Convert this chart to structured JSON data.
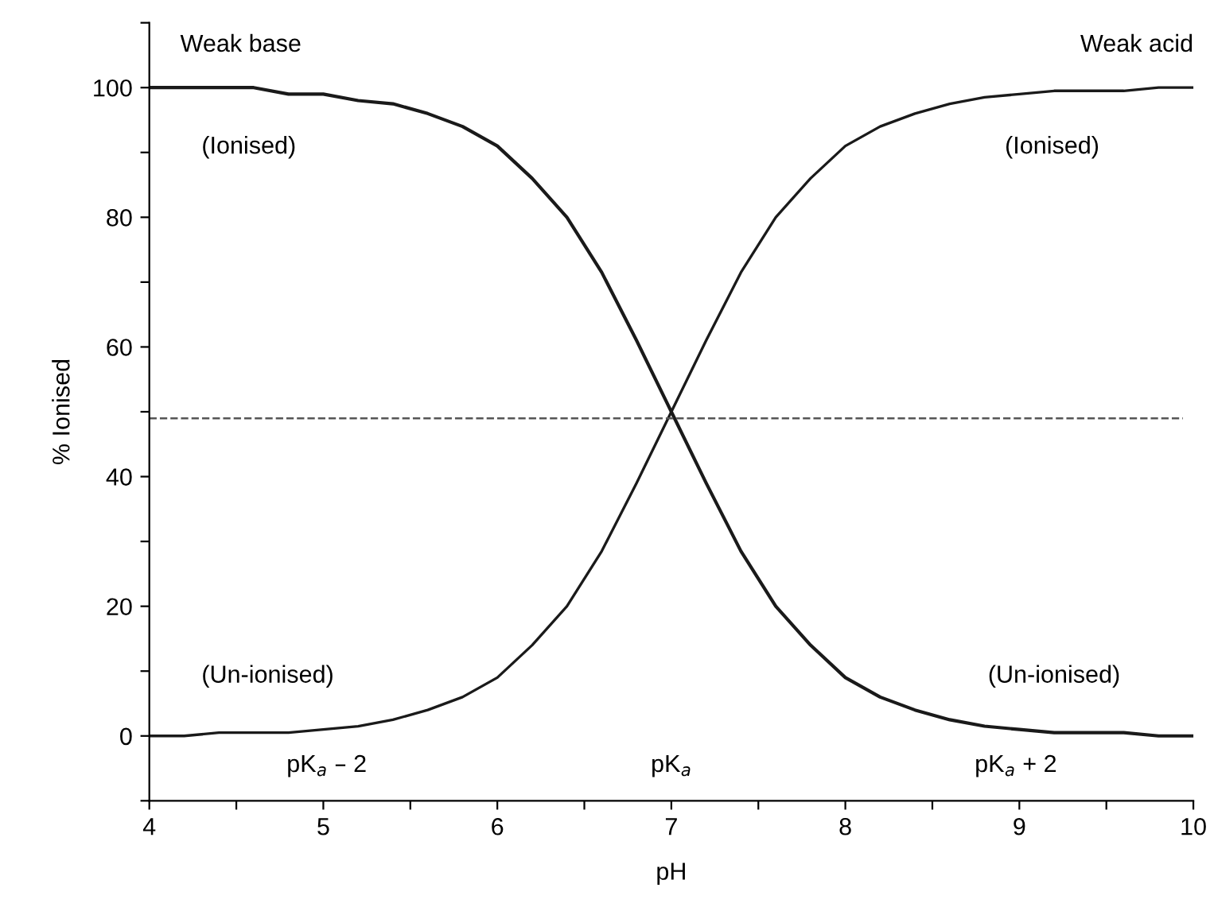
{
  "chart_data": {
    "type": "line",
    "xlabel": "pH",
    "ylabel": "% Ionised",
    "x": [
      4,
      4.2,
      4.4,
      4.6,
      4.8,
      5,
      5.2,
      5.4,
      5.6,
      5.8,
      6,
      6.2,
      6.4,
      6.6,
      6.8,
      7,
      7.2,
      7.4,
      7.6,
      7.8,
      8,
      8.2,
      8.4,
      8.6,
      8.8,
      9,
      9.2,
      9.4,
      9.6,
      9.8,
      10
    ],
    "series": [
      {
        "name": "Weak base",
        "color": "#1a1a1a",
        "values": [
          100,
          100,
          100,
          100,
          99,
          99,
          98,
          97.5,
          96,
          94,
          91,
          86,
          80,
          71.5,
          61,
          50,
          39,
          28.5,
          20,
          14,
          9,
          6,
          4,
          2.5,
          1.5,
          1,
          0.5,
          0.5,
          0.5,
          0,
          0
        ]
      },
      {
        "name": "Weak acid",
        "color": "#1a1a1a",
        "values": [
          0,
          0,
          0.5,
          0.5,
          0.5,
          1,
          1.5,
          2.5,
          4,
          6,
          9,
          14,
          20,
          28.5,
          39,
          50,
          61,
          71.5,
          80,
          86,
          91,
          94,
          96,
          97.5,
          98.5,
          99,
          99.5,
          99.5,
          99.5,
          100,
          100
        ]
      }
    ],
    "xlim": [
      4,
      10
    ],
    "ylim": [
      -10,
      110
    ],
    "xticks": [
      4,
      {
        "value": 4.5,
        "label": null
      },
      5,
      {
        "value": 5.5,
        "label": null
      },
      6,
      {
        "value": 6.5,
        "label": null
      },
      7,
      {
        "value": 7.5,
        "label": null
      },
      8,
      {
        "value": 8.5,
        "label": null
      },
      9,
      {
        "value": 9.5,
        "label": null
      },
      10
    ],
    "yticks": [
      {
        "value": -10,
        "label": null
      },
      0,
      {
        "value": 10,
        "label": null
      },
      20,
      {
        "value": 30,
        "label": null
      },
      40,
      {
        "value": 50,
        "label": null
      },
      60,
      {
        "value": 70,
        "label": null
      },
      80,
      {
        "value": 90,
        "label": null
      },
      100,
      {
        "value": 110,
        "label": null
      }
    ],
    "ref_lines": [
      {
        "axis": "y",
        "value": 49,
        "color": "#555555",
        "line_style": "dashed"
      }
    ],
    "annotations": [
      "(Ionised)",
      "(Ionised)",
      "(Un-ionised)",
      "(Un-ionised)",
      "pK$_{a}$ – 2",
      "pK$_{a}$",
      "pK$_{a}$ + 2"
    ],
    "grid": false,
    "legend": false,
    "marker": "none",
    "line_style": "solid"
  }
}
